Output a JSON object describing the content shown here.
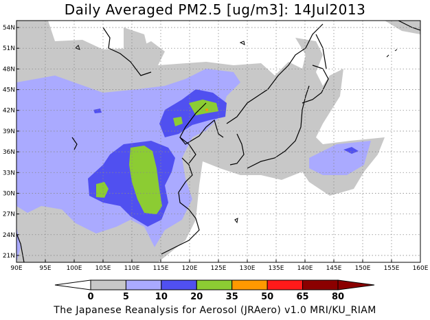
{
  "title": "Daily Averaged PM2.5 [ug/m3]: 14Jul2013",
  "footer": "The Japanese Reanalysis for Aerosol (JRAero) v1.0 MRI/KU_RIAM",
  "map": {
    "lon_range": [
      90,
      160
    ],
    "lat_range": [
      20,
      55
    ],
    "lon_ticks": [
      "90E",
      "95E",
      "100E",
      "105E",
      "110E",
      "115E",
      "120E",
      "125E",
      "130E",
      "135E",
      "140E",
      "145E",
      "150E",
      "155E",
      "160E"
    ],
    "lat_ticks": [
      "21N",
      "24N",
      "27N",
      "30N",
      "33N",
      "36N",
      "39N",
      "42N",
      "45N",
      "48N",
      "51N",
      "54N"
    ],
    "grid": "dotted"
  },
  "colorbar": {
    "levels": [
      "0",
      "5",
      "10",
      "20",
      "35",
      "50",
      "65",
      "80"
    ],
    "colors": [
      "#ffffff",
      "#c8c8c8",
      "#aaaaff",
      "#5050f0",
      "#8ccc33",
      "#ff9900",
      "#ff1a1a",
      "#8b0000"
    ]
  }
}
